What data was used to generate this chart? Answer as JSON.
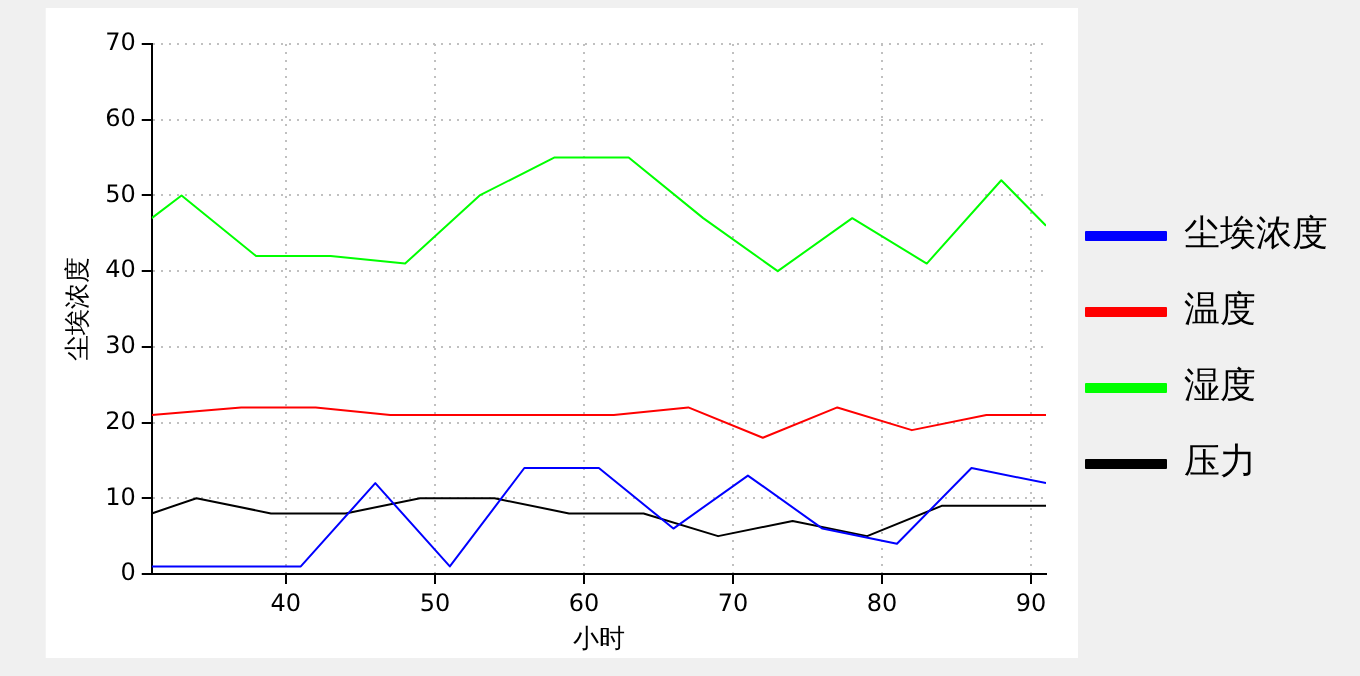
{
  "chart_data": {
    "type": "line",
    "xlabel": "小时",
    "ylabel": "尘埃浓度",
    "xlim": [
      31,
      91
    ],
    "xticks": [
      40,
      50,
      60,
      70,
      80,
      90
    ],
    "ylim": [
      0,
      70
    ],
    "yticks": [
      0,
      10,
      20,
      30,
      40,
      50,
      60,
      70
    ],
    "grid": true,
    "legend": "right",
    "marker": "none",
    "line_style": "solid",
    "series": [
      {
        "name": "尘埃浓度",
        "color": "#0000ff",
        "x": [
          31,
          36,
          41,
          46,
          51,
          56,
          61,
          66,
          71,
          76,
          81,
          86,
          91
        ],
        "values": [
          1,
          1,
          1,
          12,
          1,
          14,
          14,
          6,
          13,
          6,
          4,
          14,
          12
        ]
      },
      {
        "name": "温度",
        "color": "#ff0000",
        "x": [
          31,
          37,
          42,
          47,
          52,
          57,
          62,
          67,
          72,
          77,
          82,
          87,
          91
        ],
        "values": [
          21,
          22,
          22,
          21,
          21,
          21,
          21,
          22,
          18,
          22,
          19,
          21,
          21
        ]
      },
      {
        "name": "湿度",
        "color": "#00ff00",
        "x": [
          31,
          33,
          38,
          43,
          48,
          53,
          58,
          63,
          68,
          73,
          78,
          83,
          88,
          91
        ],
        "values": [
          47,
          50,
          42,
          42,
          41,
          50,
          55,
          55,
          47,
          40,
          47,
          41,
          52,
          46
        ]
      },
      {
        "name": "压力",
        "color": "#000000",
        "x": [
          31,
          34,
          39,
          44,
          49,
          54,
          59,
          64,
          69,
          74,
          79,
          84,
          89,
          91
        ],
        "values": [
          8,
          10,
          8,
          8,
          10,
          10,
          8,
          8,
          5,
          7,
          5,
          9,
          9,
          9
        ]
      }
    ]
  }
}
